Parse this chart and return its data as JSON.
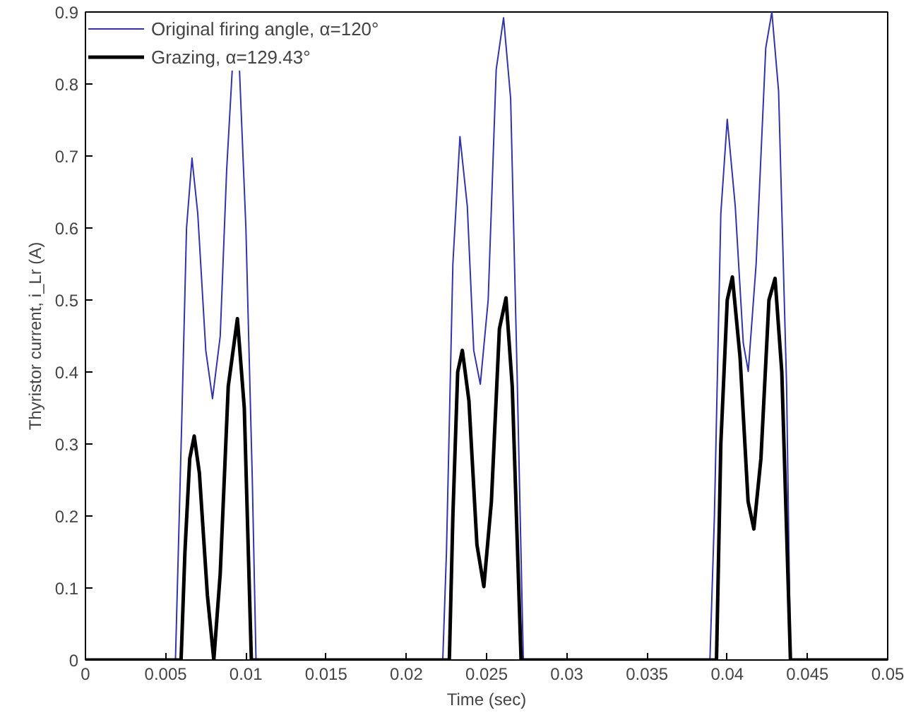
{
  "chart_data": {
    "type": "line",
    "xlabel": "Time (sec)",
    "ylabel": "Thyristor current, i_Lr (A)",
    "xlim": [
      0,
      0.05
    ],
    "ylim": [
      0,
      0.9
    ],
    "xticks": [
      0,
      0.005,
      0.01,
      0.015,
      0.02,
      0.025,
      0.03,
      0.035,
      0.04,
      0.045,
      0.05
    ],
    "yticks": [
      0,
      0.1,
      0.2,
      0.3,
      0.4,
      0.5,
      0.6,
      0.7,
      0.8,
      0.9
    ],
    "grid": false,
    "legend": "top left",
    "marker": "none",
    "line_style": "solid",
    "series": [
      {
        "name": "Original firing angle, α=120°",
        "color": "#3333aa",
        "x": [
          0,
          0.00561,
          0.006,
          0.0063,
          0.00664,
          0.007,
          0.0075,
          0.00792,
          0.0084,
          0.0088,
          0.0091,
          0.00915,
          0.0094,
          0.0096,
          0.01,
          0.0104,
          0.01063,
          0.02227,
          0.0225,
          0.0229,
          0.02334,
          0.0238,
          0.0242,
          0.02461,
          0.0251,
          0.0256,
          0.02606,
          0.0265,
          0.0269,
          0.02729,
          0.03892,
          0.0392,
          0.0396,
          0.04,
          0.0405,
          0.041,
          0.04131,
          0.0418,
          0.0424,
          0.04278,
          0.0432,
          0.0437,
          0.04394,
          0.05
        ],
        "values": [
          0,
          0,
          0.33,
          0.6,
          0.697,
          0.62,
          0.43,
          0.363,
          0.45,
          0.68,
          0.8,
          0.82,
          null,
          0.82,
          0.6,
          0.25,
          0,
          0,
          0.15,
          0.55,
          0.727,
          0.63,
          0.43,
          0.383,
          0.5,
          0.82,
          0.892,
          0.78,
          0.4,
          0,
          0,
          0.2,
          0.62,
          0.751,
          0.63,
          0.44,
          0.401,
          0.55,
          0.85,
          0.9,
          0.79,
          0.38,
          0,
          0
        ]
      },
      {
        "name": "Grazing, α=129.43°",
        "color": "#000000",
        "x": [
          0,
          0.00596,
          0.0062,
          0.0065,
          0.00678,
          0.0071,
          0.0076,
          0.008,
          0.0084,
          0.0089,
          0.00947,
          0.0099,
          0.01034,
          0.02268,
          0.0229,
          0.0232,
          0.02349,
          0.0239,
          0.0244,
          0.02483,
          0.0253,
          0.0258,
          0.02621,
          0.0266,
          0.02715,
          0.03933,
          0.0396,
          0.04,
          0.04032,
          0.0408,
          0.0413,
          0.04166,
          0.0421,
          0.0426,
          0.04298,
          0.0434,
          0.04394,
          0.05
        ],
        "values": [
          0,
          0,
          0.15,
          0.28,
          0.311,
          0.26,
          0.09,
          0,
          0.12,
          0.38,
          0.474,
          0.35,
          0,
          0,
          0.2,
          0.4,
          0.43,
          0.36,
          0.16,
          0.102,
          0.22,
          0.46,
          0.503,
          0.38,
          0,
          0,
          0.3,
          0.5,
          0.532,
          0.42,
          0.22,
          0.182,
          0.28,
          0.5,
          0.53,
          0.4,
          0,
          0
        ]
      }
    ]
  }
}
